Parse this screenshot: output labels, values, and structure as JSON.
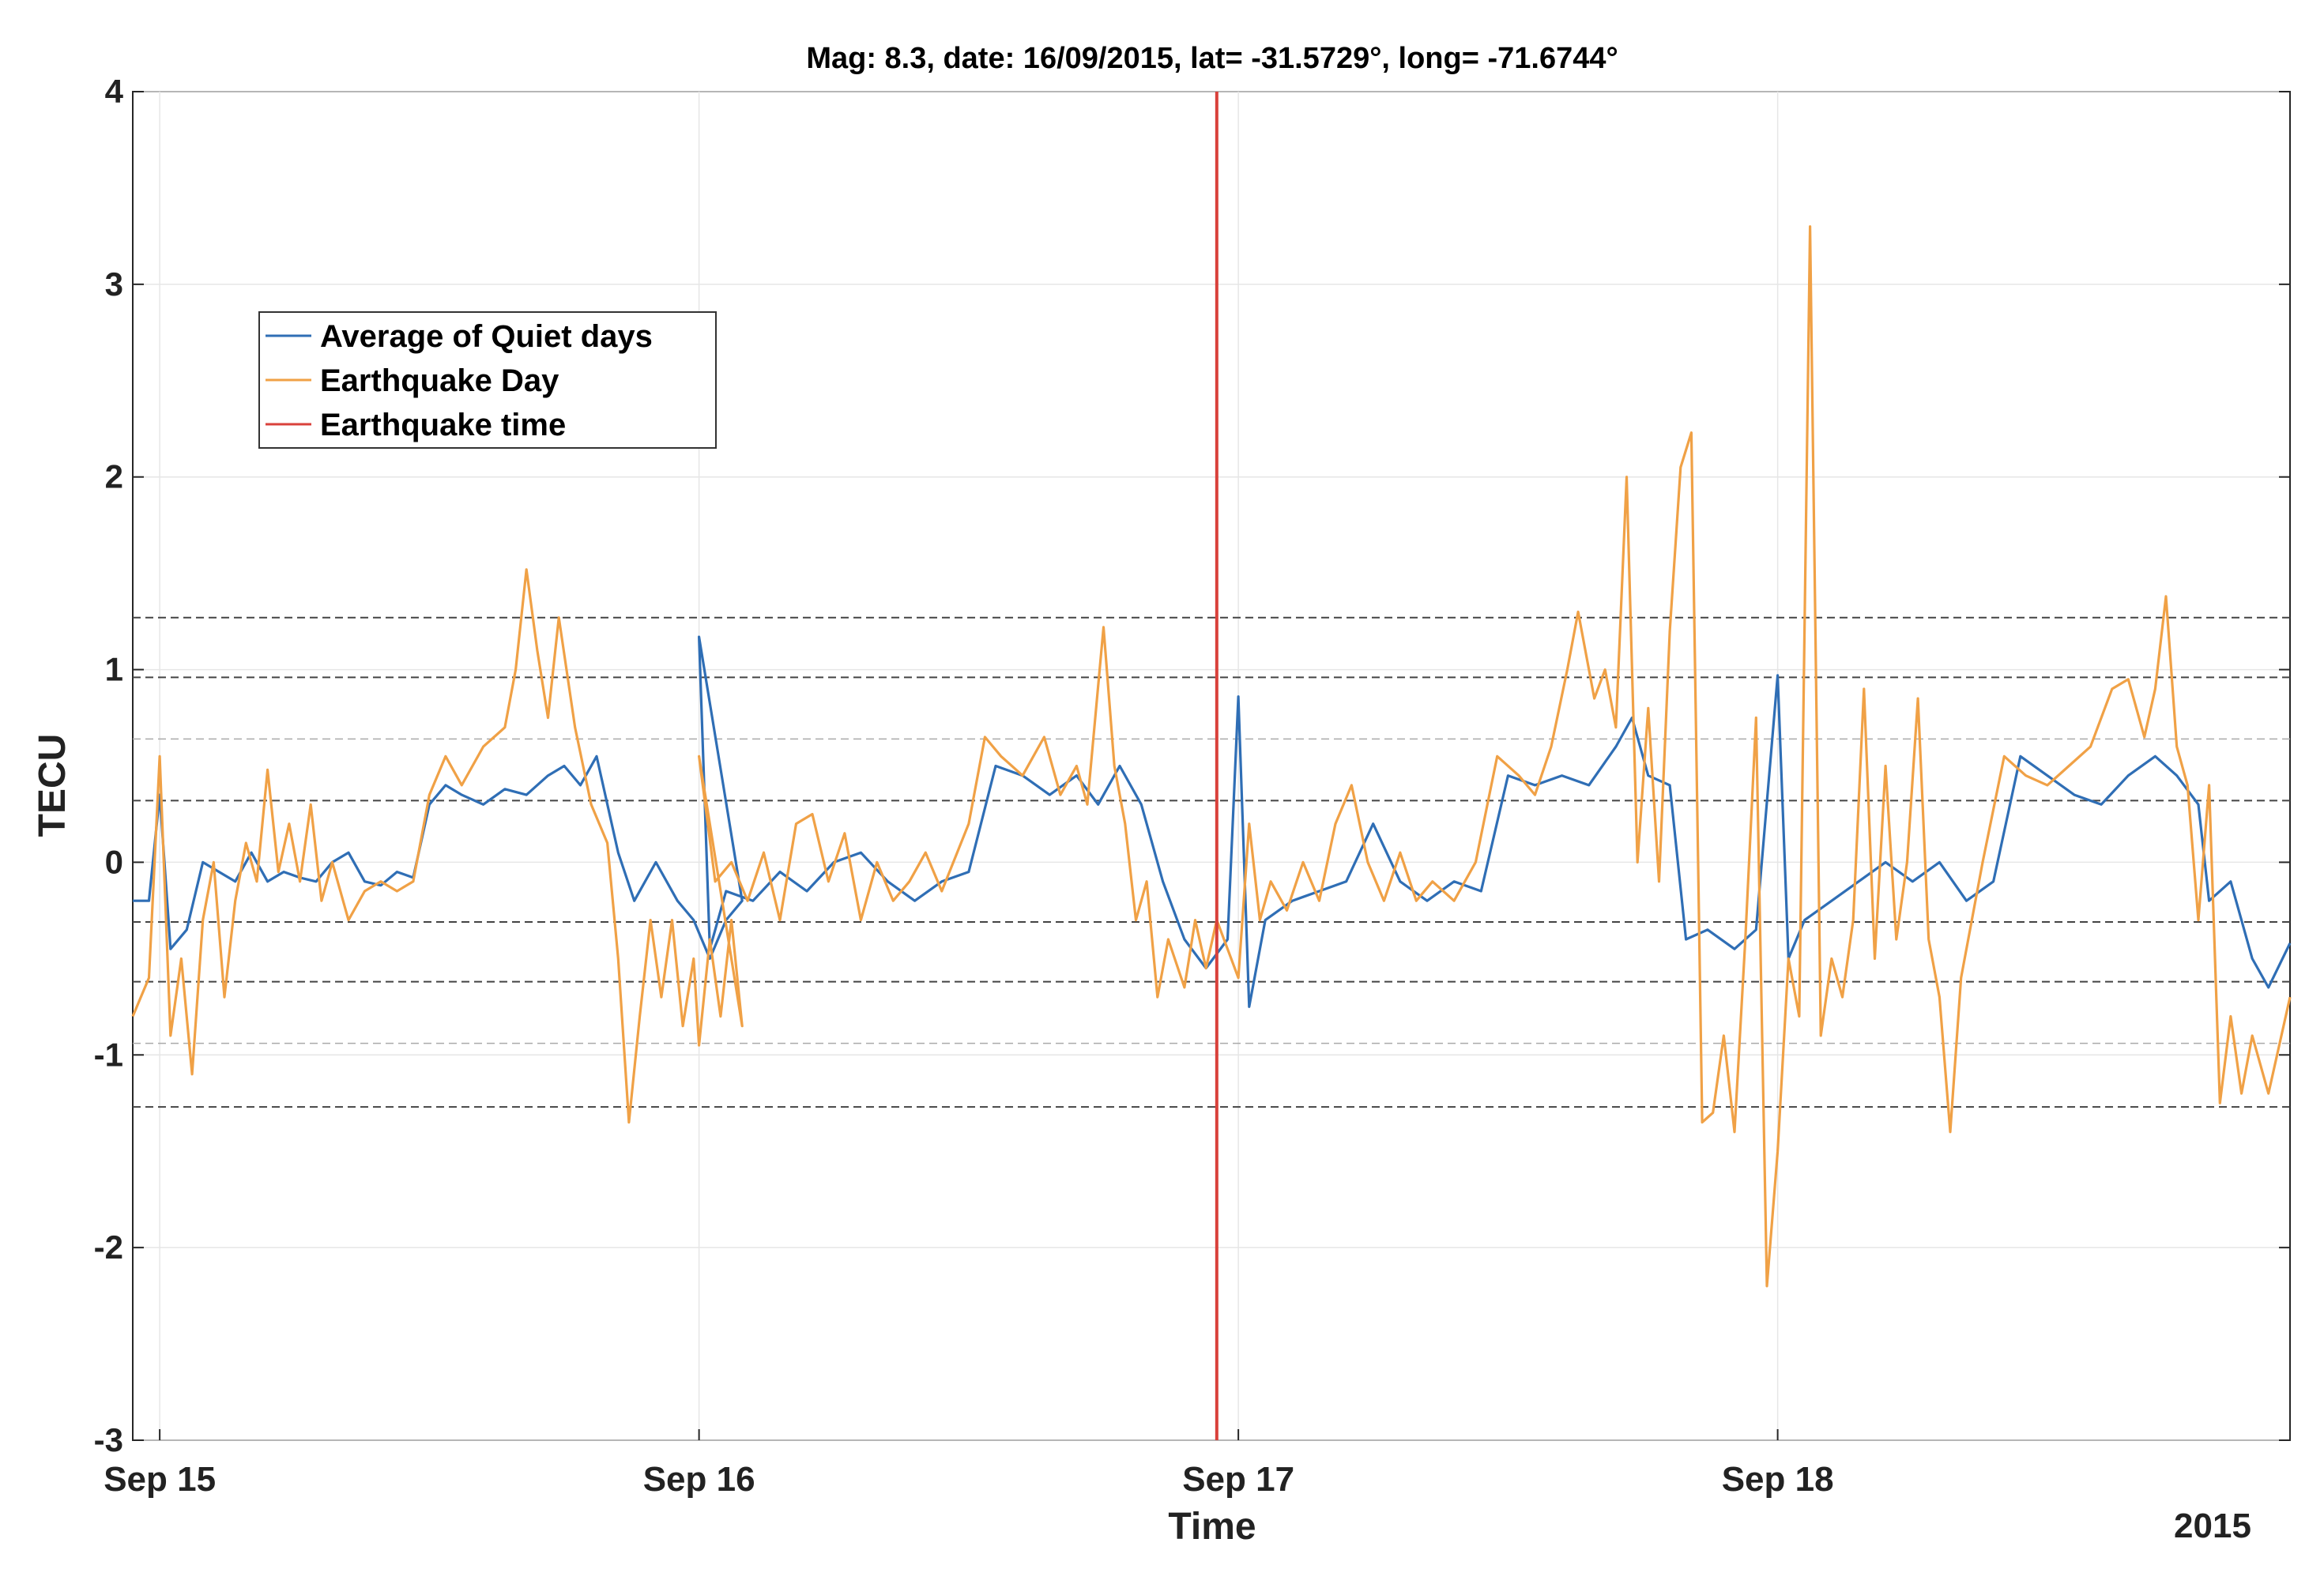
{
  "chart_data": {
    "type": "line",
    "title": "Mag: 8.3, date: 16/09/2015, lat= -31.5729°, long= -71.6744°",
    "xlabel": "Time",
    "ylabel": "TECU",
    "year_label": "2015",
    "xlim": [
      -0.05,
      3.95
    ],
    "ylim": [
      -3,
      4
    ],
    "yticks": [
      -3,
      -2,
      -1,
      0,
      1,
      2,
      3,
      4
    ],
    "ytick_labels": [
      "-3",
      "-2",
      "-1",
      "0",
      "1",
      "2",
      "3",
      "4"
    ],
    "xticks": [
      0,
      1,
      2,
      3
    ],
    "xtick_labels": [
      "Sep 15",
      "Sep 16",
      "Sep 17",
      "Sep 18"
    ],
    "grid": true,
    "legend_position": "upper-left",
    "threshold_lines": [
      1.27,
      0.96,
      0.32,
      -0.31,
      -0.62,
      -1.27
    ],
    "threshold_lines_light": [
      0.64,
      -0.94
    ],
    "earthquake_time": 1.96,
    "series": [
      {
        "name": "Average of Quiet days",
        "color": "#2f6eb5",
        "points": [
          [
            -0.05,
            -0.2
          ],
          [
            -0.02,
            -0.2
          ],
          [
            0.0,
            0.35
          ],
          [
            0.02,
            -0.45
          ],
          [
            0.05,
            -0.35
          ],
          [
            0.08,
            0.0
          ],
          [
            0.11,
            -0.05
          ],
          [
            0.14,
            -0.1
          ],
          [
            0.17,
            0.05
          ],
          [
            0.2,
            -0.1
          ],
          [
            0.23,
            -0.05
          ],
          [
            0.26,
            -0.08
          ],
          [
            0.29,
            -0.1
          ],
          [
            0.32,
            0.0
          ],
          [
            0.35,
            0.05
          ],
          [
            0.38,
            -0.1
          ],
          [
            0.41,
            -0.12
          ],
          [
            0.44,
            -0.05
          ],
          [
            0.47,
            -0.08
          ],
          [
            0.5,
            0.3
          ],
          [
            0.53,
            0.4
          ],
          [
            0.56,
            0.35
          ],
          [
            0.6,
            0.3
          ],
          [
            0.64,
            0.38
          ],
          [
            0.68,
            0.35
          ],
          [
            0.72,
            0.45
          ],
          [
            0.75,
            0.5
          ],
          [
            0.78,
            0.4
          ],
          [
            0.81,
            0.55
          ],
          [
            0.85,
            0.05
          ],
          [
            0.88,
            -0.2
          ],
          [
            0.92,
            0.0
          ],
          [
            0.96,
            -0.2
          ],
          [
            0.99,
            -0.3
          ],
          [
            1.02,
            -0.5
          ],
          [
            1.05,
            -0.3
          ],
          [
            1.08,
            -0.2
          ],
          [
            1.0,
            1.17
          ],
          [
            1.02,
            -0.45
          ],
          [
            1.05,
            -0.15
          ],
          [
            1.1,
            -0.2
          ],
          [
            1.15,
            -0.05
          ],
          [
            1.2,
            -0.15
          ],
          [
            1.25,
            0.0
          ],
          [
            1.3,
            0.05
          ],
          [
            1.35,
            -0.1
          ],
          [
            1.4,
            -0.2
          ],
          [
            1.45,
            -0.1
          ],
          [
            1.5,
            -0.05
          ],
          [
            1.55,
            0.5
          ],
          [
            1.6,
            0.45
          ],
          [
            1.65,
            0.35
          ],
          [
            1.7,
            0.45
          ],
          [
            1.74,
            0.3
          ],
          [
            1.78,
            0.5
          ],
          [
            1.82,
            0.3
          ],
          [
            1.86,
            -0.1
          ],
          [
            1.9,
            -0.4
          ],
          [
            1.94,
            -0.55
          ],
          [
            1.98,
            -0.4
          ],
          [
            2.0,
            0.86
          ],
          [
            2.02,
            -0.75
          ],
          [
            2.05,
            -0.3
          ],
          [
            2.1,
            -0.2
          ],
          [
            2.15,
            -0.15
          ],
          [
            2.2,
            -0.1
          ],
          [
            2.25,
            0.2
          ],
          [
            2.3,
            -0.1
          ],
          [
            2.35,
            -0.2
          ],
          [
            2.4,
            -0.1
          ],
          [
            2.45,
            -0.15
          ],
          [
            2.5,
            0.45
          ],
          [
            2.55,
            0.4
          ],
          [
            2.6,
            0.45
          ],
          [
            2.65,
            0.4
          ],
          [
            2.7,
            0.6
          ],
          [
            2.73,
            0.75
          ],
          [
            2.76,
            0.45
          ],
          [
            2.8,
            0.4
          ],
          [
            2.83,
            -0.4
          ],
          [
            2.87,
            -0.35
          ],
          [
            2.92,
            -0.45
          ],
          [
            2.96,
            -0.35
          ],
          [
            3.0,
            0.97
          ],
          [
            3.02,
            -0.5
          ],
          [
            3.05,
            -0.3
          ],
          [
            3.1,
            -0.2
          ],
          [
            3.15,
            -0.1
          ],
          [
            3.2,
            0.0
          ],
          [
            3.25,
            -0.1
          ],
          [
            3.3,
            0.0
          ],
          [
            3.35,
            -0.2
          ],
          [
            3.4,
            -0.1
          ],
          [
            3.45,
            0.55
          ],
          [
            3.5,
            0.45
          ],
          [
            3.55,
            0.35
          ],
          [
            3.6,
            0.3
          ],
          [
            3.65,
            0.45
          ],
          [
            3.7,
            0.55
          ],
          [
            3.74,
            0.45
          ],
          [
            3.78,
            0.3
          ],
          [
            3.8,
            -0.2
          ],
          [
            3.84,
            -0.1
          ],
          [
            3.88,
            -0.5
          ],
          [
            3.91,
            -0.65
          ],
          [
            3.95,
            -0.42
          ]
        ]
      },
      {
        "name": "Earthquake Day",
        "color": "#f0a146",
        "points": [
          [
            -0.05,
            -0.8
          ],
          [
            -0.02,
            -0.6
          ],
          [
            0.0,
            0.55
          ],
          [
            0.02,
            -0.9
          ],
          [
            0.04,
            -0.5
          ],
          [
            0.06,
            -1.1
          ],
          [
            0.08,
            -0.3
          ],
          [
            0.1,
            0.0
          ],
          [
            0.12,
            -0.7
          ],
          [
            0.14,
            -0.2
          ],
          [
            0.16,
            0.1
          ],
          [
            0.18,
            -0.1
          ],
          [
            0.2,
            0.48
          ],
          [
            0.22,
            -0.05
          ],
          [
            0.24,
            0.2
          ],
          [
            0.26,
            -0.1
          ],
          [
            0.28,
            0.3
          ],
          [
            0.3,
            -0.2
          ],
          [
            0.32,
            0.0
          ],
          [
            0.35,
            -0.3
          ],
          [
            0.38,
            -0.15
          ],
          [
            0.41,
            -0.1
          ],
          [
            0.44,
            -0.15
          ],
          [
            0.47,
            -0.1
          ],
          [
            0.5,
            0.35
          ],
          [
            0.53,
            0.55
          ],
          [
            0.56,
            0.4
          ],
          [
            0.6,
            0.6
          ],
          [
            0.64,
            0.7
          ],
          [
            0.66,
            1.0
          ],
          [
            0.68,
            1.52
          ],
          [
            0.7,
            1.1
          ],
          [
            0.72,
            0.75
          ],
          [
            0.74,
            1.27
          ],
          [
            0.77,
            0.7
          ],
          [
            0.8,
            0.3
          ],
          [
            0.83,
            0.1
          ],
          [
            0.85,
            -0.5
          ],
          [
            0.87,
            -1.35
          ],
          [
            0.89,
            -0.8
          ],
          [
            0.91,
            -0.3
          ],
          [
            0.93,
            -0.7
          ],
          [
            0.95,
            -0.3
          ],
          [
            0.97,
            -0.85
          ],
          [
            0.99,
            -0.5
          ],
          [
            1.0,
            -0.95
          ],
          [
            1.02,
            -0.4
          ],
          [
            1.04,
            -0.8
          ],
          [
            1.06,
            -0.3
          ],
          [
            1.08,
            -0.85
          ],
          [
            1.0,
            0.55
          ],
          [
            1.03,
            -0.1
          ],
          [
            1.06,
            0.0
          ],
          [
            1.09,
            -0.2
          ],
          [
            1.12,
            0.05
          ],
          [
            1.15,
            -0.3
          ],
          [
            1.18,
            0.2
          ],
          [
            1.21,
            0.25
          ],
          [
            1.24,
            -0.1
          ],
          [
            1.27,
            0.15
          ],
          [
            1.3,
            -0.3
          ],
          [
            1.33,
            0.0
          ],
          [
            1.36,
            -0.2
          ],
          [
            1.39,
            -0.1
          ],
          [
            1.42,
            0.05
          ],
          [
            1.45,
            -0.15
          ],
          [
            1.5,
            0.2
          ],
          [
            1.53,
            0.65
          ],
          [
            1.56,
            0.55
          ],
          [
            1.6,
            0.45
          ],
          [
            1.64,
            0.65
          ],
          [
            1.67,
            0.35
          ],
          [
            1.7,
            0.5
          ],
          [
            1.72,
            0.3
          ],
          [
            1.75,
            1.22
          ],
          [
            1.77,
            0.5
          ],
          [
            1.79,
            0.2
          ],
          [
            1.81,
            -0.3
          ],
          [
            1.83,
            -0.1
          ],
          [
            1.85,
            -0.7
          ],
          [
            1.87,
            -0.4
          ],
          [
            1.9,
            -0.65
          ],
          [
            1.92,
            -0.3
          ],
          [
            1.94,
            -0.55
          ],
          [
            1.96,
            -0.3
          ],
          [
            2.0,
            -0.6
          ],
          [
            2.02,
            0.2
          ],
          [
            2.04,
            -0.3
          ],
          [
            2.06,
            -0.1
          ],
          [
            2.09,
            -0.25
          ],
          [
            2.12,
            0.0
          ],
          [
            2.15,
            -0.2
          ],
          [
            2.18,
            0.2
          ],
          [
            2.21,
            0.4
          ],
          [
            2.24,
            0.0
          ],
          [
            2.27,
            -0.2
          ],
          [
            2.3,
            0.05
          ],
          [
            2.33,
            -0.2
          ],
          [
            2.36,
            -0.1
          ],
          [
            2.4,
            -0.2
          ],
          [
            2.44,
            0.0
          ],
          [
            2.48,
            0.55
          ],
          [
            2.52,
            0.45
          ],
          [
            2.55,
            0.35
          ],
          [
            2.58,
            0.6
          ],
          [
            2.61,
            1.0
          ],
          [
            2.63,
            1.3
          ],
          [
            2.66,
            0.85
          ],
          [
            2.68,
            1.0
          ],
          [
            2.7,
            0.7
          ],
          [
            2.72,
            2.0
          ],
          [
            2.74,
            0.0
          ],
          [
            2.76,
            0.8
          ],
          [
            2.78,
            -0.1
          ],
          [
            2.8,
            1.2
          ],
          [
            2.82,
            2.05
          ],
          [
            2.84,
            2.23
          ],
          [
            2.86,
            -1.35
          ],
          [
            2.88,
            -1.3
          ],
          [
            2.9,
            -0.9
          ],
          [
            2.92,
            -1.4
          ],
          [
            2.94,
            -0.4
          ],
          [
            2.96,
            0.75
          ],
          [
            2.98,
            -2.2
          ],
          [
            3.0,
            -1.5
          ],
          [
            3.02,
            -0.5
          ],
          [
            3.04,
            -0.8
          ],
          [
            3.06,
            3.3
          ],
          [
            3.08,
            -0.9
          ],
          [
            3.1,
            -0.5
          ],
          [
            3.12,
            -0.7
          ],
          [
            3.14,
            -0.3
          ],
          [
            3.16,
            0.9
          ],
          [
            3.18,
            -0.5
          ],
          [
            3.2,
            0.5
          ],
          [
            3.22,
            -0.4
          ],
          [
            3.24,
            0.0
          ],
          [
            3.26,
            0.85
          ],
          [
            3.28,
            -0.4
          ],
          [
            3.3,
            -0.7
          ],
          [
            3.32,
            -1.4
          ],
          [
            3.34,
            -0.6
          ],
          [
            3.38,
            0.0
          ],
          [
            3.42,
            0.55
          ],
          [
            3.46,
            0.45
          ],
          [
            3.5,
            0.4
          ],
          [
            3.54,
            0.5
          ],
          [
            3.58,
            0.6
          ],
          [
            3.62,
            0.9
          ],
          [
            3.65,
            0.95
          ],
          [
            3.68,
            0.65
          ],
          [
            3.7,
            0.9
          ],
          [
            3.72,
            1.38
          ],
          [
            3.74,
            0.6
          ],
          [
            3.76,
            0.4
          ],
          [
            3.78,
            -0.3
          ],
          [
            3.8,
            0.4
          ],
          [
            3.82,
            -1.25
          ],
          [
            3.84,
            -0.8
          ],
          [
            3.86,
            -1.2
          ],
          [
            3.88,
            -0.9
          ],
          [
            3.91,
            -1.2
          ],
          [
            3.95,
            -0.7
          ]
        ]
      },
      {
        "name": "Earthquake time",
        "color": "#d9413b"
      }
    ]
  }
}
